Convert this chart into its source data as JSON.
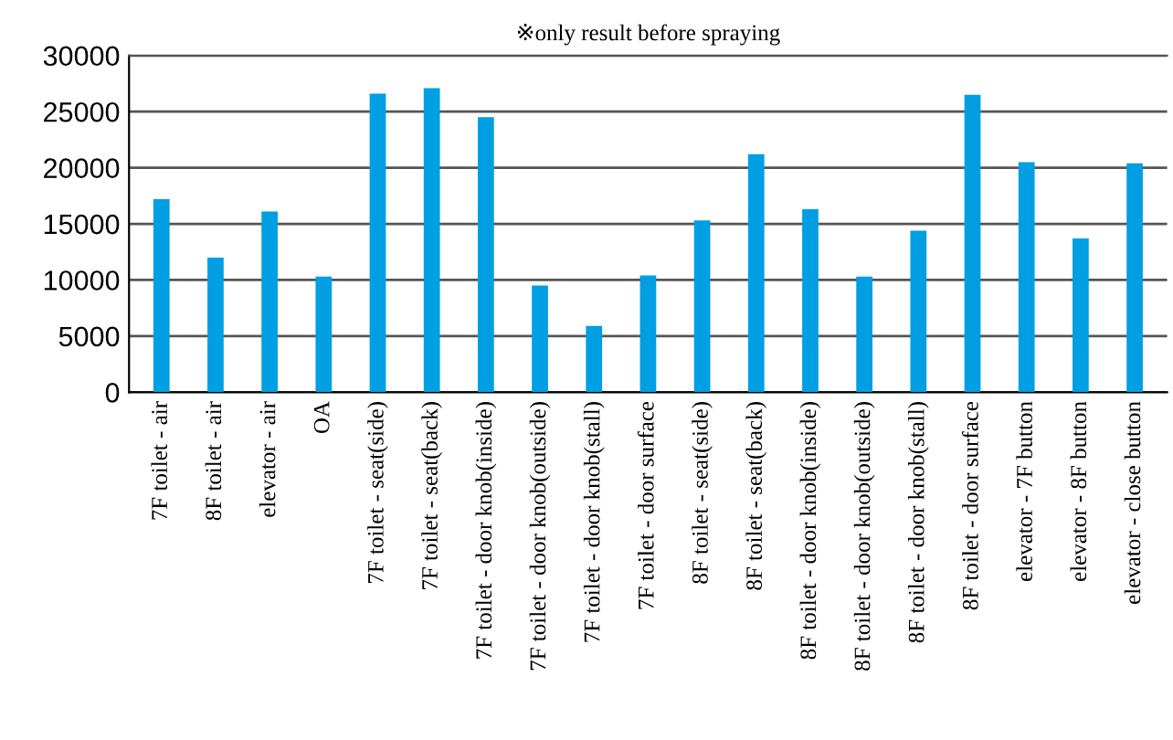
{
  "chart_data": {
    "type": "bar",
    "title": "※only result before spraying",
    "categories": [
      "7F toilet - air",
      "8F toilet - air",
      "elevator - air",
      "OA",
      "7F toilet - seat(side)",
      "7F toilet - seat(back)",
      "7F toilet - door knob(inside)",
      "7F toilet - door knob(outside)",
      "7F toilet - door knob(stall)",
      "7F toilet - door surface",
      "8F toilet - seat(side)",
      "8F toilet - seat(back)",
      "8F toilet - door knob(inside)",
      "8F toilet - door knob(outside)",
      "8F toilet - door knob(stall)",
      "8F toilet - door surface",
      "elevator - 7F button",
      "elevator - 8F button",
      "elevator - close button"
    ],
    "values": [
      17200,
      12000,
      16100,
      10300,
      26600,
      27100,
      24500,
      9500,
      5900,
      10400,
      15300,
      21200,
      16300,
      10300,
      14400,
      26500,
      20500,
      13700,
      20400
    ],
    "color": "#009fe3",
    "ylim": [
      0,
      30000
    ],
    "yticks": [
      0,
      5000,
      10000,
      15000,
      20000,
      25000,
      30000
    ],
    "grid": "y"
  }
}
